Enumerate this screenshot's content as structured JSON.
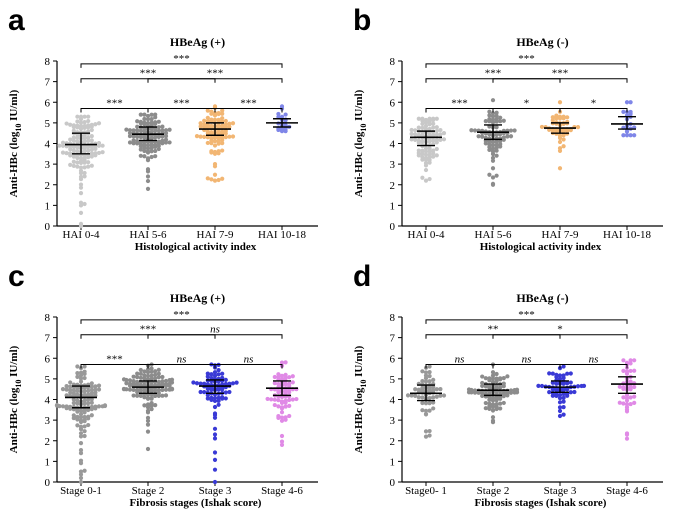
{
  "chart_data": [
    {
      "panel": "a",
      "type": "scatter",
      "title": "HBeAg (+)",
      "xlabel": "Histological activity index",
      "ylabel_main": "Anti-HBc (log",
      "ylabel_sub": "10",
      "ylabel_tail": " IU/ml)",
      "ylim": [
        0,
        8
      ],
      "yticks": [
        "0",
        "1",
        "2",
        "3",
        "4",
        "5",
        "6",
        "7",
        "8"
      ],
      "categories": [
        "HAI 0-4",
        "HAI 5-6",
        "HAI 7-9",
        "HAI 10-18"
      ],
      "colors": [
        "#c8c8c8",
        "#8c8c8c",
        "#f2b673",
        "#7f86e8"
      ],
      "counts": [
        130,
        110,
        90,
        20
      ],
      "medians": [
        3.95,
        4.45,
        4.7,
        5.0
      ],
      "iqr": [
        [
          3.5,
          4.5
        ],
        [
          4.15,
          4.8
        ],
        [
          4.4,
          5.0
        ],
        [
          4.8,
          5.2
        ]
      ],
      "ranges": [
        [
          0.0,
          5.3
        ],
        [
          1.8,
          5.4
        ],
        [
          2.2,
          5.8
        ],
        [
          4.6,
          5.8
        ]
      ],
      "comparisons": [
        {
          "from": 0,
          "to": 3,
          "label": "***"
        },
        {
          "from": 1,
          "to": 3,
          "label": "***"
        },
        {
          "from": 0,
          "to": 2,
          "label": "***"
        },
        {
          "from": 0,
          "to": 1,
          "label": "***"
        },
        {
          "from": 1,
          "to": 2,
          "label": "***"
        },
        {
          "from": 2,
          "to": 3,
          "label": "***"
        }
      ]
    },
    {
      "panel": "b",
      "type": "scatter",
      "title": "HBeAg (-)",
      "xlabel": "Histological activity index",
      "ylabel_main": "Anti-HBc (log",
      "ylabel_sub": "10",
      "ylabel_tail": " IU/ml)",
      "ylim": [
        0,
        8
      ],
      "yticks": [
        "0",
        "1",
        "2",
        "3",
        "4",
        "5",
        "6",
        "7",
        "8"
      ],
      "categories": [
        "HAI 0-4",
        "HAI 5-6",
        "HAI 7-9",
        "HAI 10-18"
      ],
      "colors": [
        "#c8c8c8",
        "#8c8c8c",
        "#f2b673",
        "#7f86e8"
      ],
      "counts": [
        90,
        80,
        50,
        20
      ],
      "medians": [
        4.3,
        4.55,
        4.75,
        4.95
      ],
      "iqr": [
        [
          3.9,
          4.6
        ],
        [
          4.2,
          4.9
        ],
        [
          4.5,
          5.0
        ],
        [
          4.7,
          5.3
        ]
      ],
      "ranges": [
        [
          2.2,
          5.2
        ],
        [
          2.0,
          6.1
        ],
        [
          2.8,
          6.0
        ],
        [
          4.4,
          6.0
        ]
      ],
      "comparisons": [
        {
          "from": 0,
          "to": 3,
          "label": "***"
        },
        {
          "from": 1,
          "to": 3,
          "label": "***"
        },
        {
          "from": 0,
          "to": 2,
          "label": "***"
        },
        {
          "from": 0,
          "to": 1,
          "label": "***"
        },
        {
          "from": 1,
          "to": 2,
          "label": "*"
        },
        {
          "from": 2,
          "to": 3,
          "label": "*"
        }
      ]
    },
    {
      "panel": "c",
      "type": "scatter",
      "title": "HBeAg (+)",
      "xlabel": "Fibrosis stages (Ishak score)",
      "ylabel_main": "Anti-HBc (log",
      "ylabel_sub": "10",
      "ylabel_tail": " IU/ml)",
      "ylim": [
        0,
        8
      ],
      "yticks": [
        "0",
        "1",
        "2",
        "3",
        "4",
        "5",
        "6",
        "7",
        "8"
      ],
      "categories": [
        "Stage 0-1",
        "Stage 2",
        "Stage 3",
        "Stage 4-6"
      ],
      "colors": [
        "#999999",
        "#8c8c8c",
        "#3a3ad6",
        "#e08ae6"
      ],
      "counts": [
        130,
        120,
        80,
        70
      ],
      "medians": [
        4.1,
        4.6,
        4.65,
        4.55
      ],
      "iqr": [
        [
          3.6,
          4.65
        ],
        [
          4.3,
          4.9
        ],
        [
          4.3,
          4.95
        ],
        [
          4.2,
          4.9
        ]
      ],
      "ranges": [
        [
          0.0,
          5.6
        ],
        [
          1.6,
          5.7
        ],
        [
          0.0,
          5.7
        ],
        [
          1.8,
          5.8
        ]
      ],
      "comparisons": [
        {
          "from": 0,
          "to": 3,
          "label": "***"
        },
        {
          "from": 1,
          "to": 3,
          "label": "ns"
        },
        {
          "from": 0,
          "to": 2,
          "label": "***"
        },
        {
          "from": 0,
          "to": 1,
          "label": "***"
        },
        {
          "from": 1,
          "to": 2,
          "label": "ns"
        },
        {
          "from": 2,
          "to": 3,
          "label": "ns"
        }
      ]
    },
    {
      "panel": "d",
      "type": "scatter",
      "title": "HBeAg (-)",
      "xlabel": "Fibrosis stages (Ishak score)",
      "ylabel_main": "Anti-HBc (log",
      "ylabel_sub": "10",
      "ylabel_tail": " IU/ml)",
      "ylim": [
        0,
        8
      ],
      "yticks": [
        "0",
        "1",
        "2",
        "3",
        "4",
        "5",
        "6",
        "7",
        "8"
      ],
      "categories": [
        "Stage0- 1",
        "Stage 2",
        "Stage 3",
        "Stage 4-6"
      ],
      "colors": [
        "#999999",
        "#8c8c8c",
        "#3a3ad6",
        "#e08ae6"
      ],
      "counts": [
        60,
        90,
        60,
        45
      ],
      "medians": [
        4.3,
        4.45,
        4.6,
        4.75
      ],
      "iqr": [
        [
          3.95,
          4.7
        ],
        [
          4.2,
          4.75
        ],
        [
          4.35,
          4.9
        ],
        [
          4.3,
          5.1
        ]
      ],
      "ranges": [
        [
          2.2,
          5.6
        ],
        [
          2.9,
          5.7
        ],
        [
          3.2,
          5.6
        ],
        [
          2.1,
          5.9
        ]
      ],
      "comparisons": [
        {
          "from": 0,
          "to": 3,
          "label": "***"
        },
        {
          "from": 1,
          "to": 3,
          "label": "*"
        },
        {
          "from": 0,
          "to": 2,
          "label": "**"
        },
        {
          "from": 0,
          "to": 1,
          "label": "ns"
        },
        {
          "from": 1,
          "to": 2,
          "label": "ns"
        },
        {
          "from": 2,
          "to": 3,
          "label": "ns"
        }
      ]
    }
  ]
}
